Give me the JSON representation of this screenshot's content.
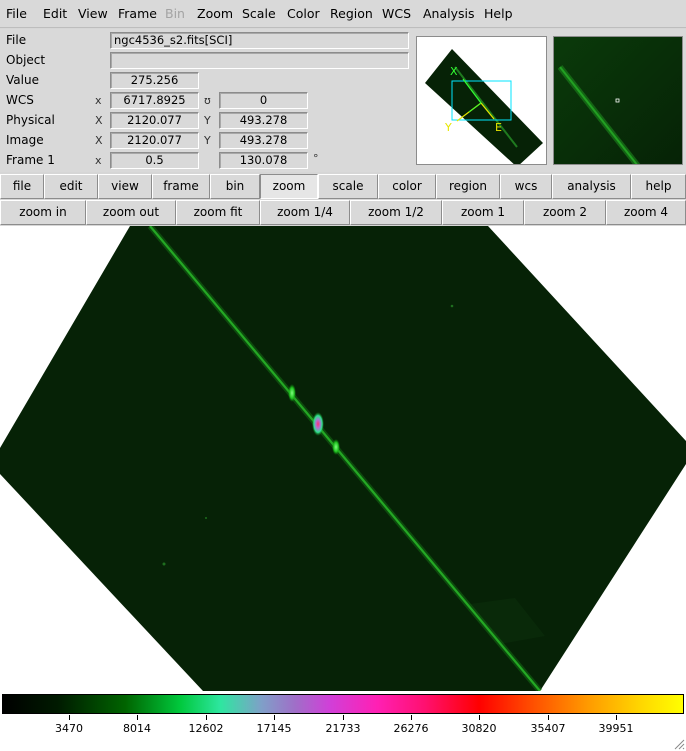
{
  "menubar": {
    "items": [
      {
        "label": "File",
        "enabled": true
      },
      {
        "label": "Edit",
        "enabled": true
      },
      {
        "label": "View",
        "enabled": true
      },
      {
        "label": "Frame",
        "enabled": true
      },
      {
        "label": "Bin",
        "enabled": false
      },
      {
        "label": "Zoom",
        "enabled": true
      },
      {
        "label": "Scale",
        "enabled": true
      },
      {
        "label": "Color",
        "enabled": true
      },
      {
        "label": "Region",
        "enabled": true
      },
      {
        "label": "WCS",
        "enabled": true
      },
      {
        "label": "Analysis",
        "enabled": true
      },
      {
        "label": "Help",
        "enabled": true
      }
    ]
  },
  "info": {
    "file_label": "File",
    "file_value": "ngc4536_s2.fits[SCI]",
    "object_label": "Object",
    "object_value": "",
    "value_label": "Value",
    "value_value": "275.256",
    "wcs_label": "WCS",
    "wcs_x_axis": "x",
    "wcs_x_value": "6717.8925",
    "wcs_y_axis": "ʊ",
    "wcs_y_value": "0",
    "physical_label": "Physical",
    "physical_x_axis": "X",
    "physical_x_value": "2120.077",
    "physical_y_axis": "Y",
    "physical_y_value": "493.278",
    "image_label": "Image",
    "image_x_axis": "X",
    "image_x_value": "2120.077",
    "image_y_axis": "Y",
    "image_y_value": "493.278",
    "frame_label": "Frame 1",
    "frame_x_axis": "x",
    "frame_zoom_value": "0.5",
    "frame_angle_value": "130.078",
    "frame_angle_unit": "°"
  },
  "panner": {
    "compass_x": "X",
    "compass_y": "Y",
    "compass_e": "E"
  },
  "buttonbar": {
    "active": "zoom",
    "items": [
      "file",
      "edit",
      "view",
      "frame",
      "bin",
      "zoom",
      "scale",
      "color",
      "region",
      "wcs",
      "analysis",
      "help"
    ]
  },
  "zoombar": {
    "items": [
      "zoom in",
      "zoom out",
      "zoom fit",
      "zoom 1/4",
      "zoom 1/2",
      "zoom 1",
      "zoom 2",
      "zoom 4"
    ]
  },
  "colorbar": {
    "colormap": "bb-like",
    "ticks": [
      "3470",
      "8014",
      "12602",
      "17145",
      "21733",
      "26276",
      "30820",
      "35407",
      "39951"
    ]
  },
  "colors": {
    "image_background": "#062206",
    "spectrum_trace": "#1aa21a",
    "compass": "#32ff32",
    "panner_box": "#00e5ff",
    "compass_y_e": "#e6e600"
  }
}
